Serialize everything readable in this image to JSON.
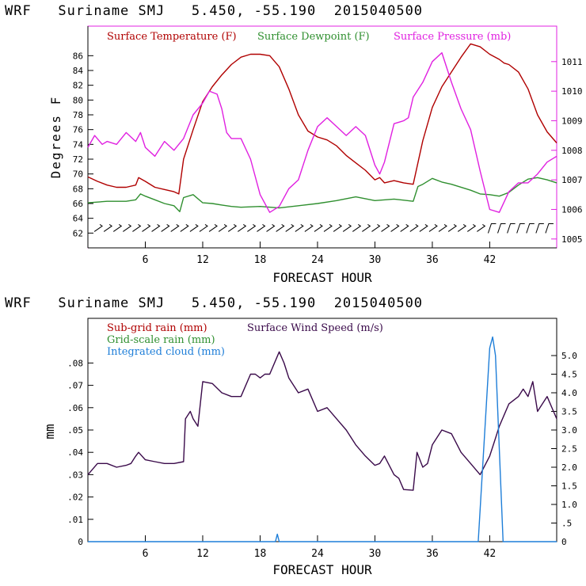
{
  "chart_data": [
    {
      "type": "line",
      "title": "WRF   Suriname SMJ   5.450, -55.190  2015040500",
      "xlabel": "FORECAST HOUR",
      "ylabel": "Degrees F",
      "xlim": [
        0,
        49
      ],
      "ylim": [
        60,
        90
      ],
      "y2lim": [
        1004.7,
        1012.2
      ],
      "xticks": [
        6,
        12,
        18,
        24,
        30,
        36,
        42
      ],
      "yticks": [
        62,
        64,
        66,
        68,
        70,
        72,
        74,
        76,
        78,
        80,
        82,
        84,
        86
      ],
      "y2ticks": [
        1005,
        1006,
        1007,
        1008,
        1009,
        1010,
        1011
      ],
      "legend": [
        "Surface Temperature (F)",
        "Surface Dewpoint (F)",
        "Surface Pressure (mb)"
      ],
      "series": [
        {
          "name": "Surface Temperature (F)",
          "axis": "left",
          "color": "#b00000",
          "x": [
            0,
            1,
            2,
            3,
            4,
            5,
            5.3,
            6,
            7,
            8,
            9,
            9.5,
            10,
            11,
            12,
            13,
            14,
            15,
            16,
            17,
            18,
            19,
            20,
            21,
            22,
            23,
            24,
            25,
            26,
            27,
            28,
            29,
            30,
            30.5,
            31,
            32,
            33,
            34,
            35,
            36,
            37,
            38,
            39,
            40,
            41,
            42,
            43,
            43.5,
            44,
            45,
            46,
            47,
            48,
            49
          ],
          "y": [
            69.6,
            69,
            68.5,
            68.2,
            68.2,
            68.5,
            69.5,
            69,
            68.2,
            67.9,
            67.6,
            67.3,
            72,
            76,
            79.8,
            81.8,
            83.4,
            84.8,
            85.8,
            86.2,
            86.2,
            86,
            84.5,
            81.5,
            78,
            75.8,
            75,
            74.6,
            73.8,
            72.5,
            71.5,
            70.5,
            69.2,
            69.5,
            68.8,
            69.1,
            68.8,
            68.6,
            74.5,
            79,
            81.8,
            83.8,
            85.8,
            87.6,
            87.2,
            86.2,
            85.5,
            85,
            84.8,
            83.8,
            81.5,
            78,
            75.7,
            74.2
          ]
        },
        {
          "name": "Surface Dewpoint (F)",
          "axis": "left",
          "color": "#2f8f2f",
          "x": [
            0,
            2,
            4,
            5,
            5.5,
            6,
            7,
            8,
            9,
            9.6,
            10,
            11,
            12,
            13,
            14,
            15,
            16,
            18,
            20,
            22,
            24,
            26,
            28,
            30,
            32,
            34,
            34.5,
            35,
            36,
            37,
            38,
            40,
            41,
            42,
            43,
            44,
            45,
            46,
            47,
            48,
            49
          ],
          "y": [
            66.1,
            66.3,
            66.3,
            66.5,
            67.3,
            67,
            66.5,
            66,
            65.7,
            64.9,
            66.8,
            67.2,
            66.1,
            66,
            65.8,
            65.6,
            65.5,
            65.6,
            65.4,
            65.7,
            66,
            66.4,
            66.9,
            66.4,
            66.6,
            66.3,
            68.3,
            68.6,
            69.4,
            68.9,
            68.6,
            67.8,
            67.3,
            67.2,
            67,
            67.5,
            68.5,
            69.3,
            69.5,
            69.2,
            68.8
          ]
        },
        {
          "name": "Surface Pressure (mb)",
          "axis": "right",
          "color": "#e020e0",
          "x": [
            0,
            0.7,
            1.5,
            2,
            3,
            4,
            5,
            5.5,
            6,
            7,
            8,
            9,
            10,
            11,
            12,
            12.7,
            13.5,
            14,
            14.5,
            15,
            16,
            17,
            18,
            19,
            20,
            21,
            22,
            23,
            24,
            25,
            26,
            27,
            28,
            29,
            30,
            30.5,
            31,
            32,
            33,
            33.5,
            34,
            35,
            36,
            37,
            38,
            39,
            40,
            41,
            42,
            43,
            44,
            45,
            46,
            47,
            48,
            49
          ],
          "y": [
            1008.1,
            1008.5,
            1008.2,
            1008.3,
            1008.2,
            1008.6,
            1008.3,
            1008.6,
            1008.1,
            1007.8,
            1008.3,
            1008.0,
            1008.4,
            1009.2,
            1009.6,
            1010.0,
            1009.9,
            1009.4,
            1008.6,
            1008.4,
            1008.4,
            1007.7,
            1006.5,
            1005.9,
            1006.1,
            1006.7,
            1007.0,
            1008.0,
            1008.8,
            1009.1,
            1008.8,
            1008.5,
            1008.8,
            1008.5,
            1007.5,
            1007.2,
            1007.6,
            1008.9,
            1009.0,
            1009.1,
            1009.8,
            1010.3,
            1011.0,
            1011.3,
            1010.3,
            1009.4,
            1008.7,
            1007.3,
            1006.0,
            1005.9,
            1006.6,
            1006.9,
            1006.9,
            1007.2,
            1007.6,
            1007.8
          ]
        }
      ],
      "wind_barbs": "row of wind barbs along the bottom of the plot"
    },
    {
      "type": "line",
      "title": "WRF   Suriname SMJ   5.450, -55.190  2015040500",
      "xlabel": "FORECAST HOUR",
      "ylabel": "mm",
      "xlim": [
        0,
        49
      ],
      "ylim": [
        0,
        0.1
      ],
      "y2lim": [
        0,
        6
      ],
      "xticks": [
        6,
        12,
        18,
        24,
        30,
        36,
        42
      ],
      "yticks": [
        0,
        0.01,
        0.02,
        0.03,
        0.04,
        0.05,
        0.06,
        0.07,
        0.08
      ],
      "ytick_labels": [
        "0",
        ".01",
        ".02",
        ".03",
        ".04",
        ".05",
        ".06",
        ".07",
        ".08"
      ],
      "y2ticks": [
        0,
        0.5,
        1.0,
        1.5,
        2.0,
        2.5,
        3.0,
        3.5,
        4.0,
        4.5,
        5.0
      ],
      "y2tick_labels": [
        ".5",
        "1.0",
        "1.5",
        "2.0",
        "2.5",
        "3.0",
        "3.5",
        "4.0",
        "4.5",
        "5.0"
      ],
      "legend": [
        "Sub-grid rain (mm)",
        "Grid-scale rain (mm)",
        "Integrated cloud (mm)",
        "Surface Wind Speed (m/s)"
      ],
      "series": [
        {
          "name": "Surface Wind Speed (m/s)",
          "axis": "right",
          "color": "#3a0a4a",
          "x": [
            0,
            1,
            2,
            3,
            4,
            4.5,
            5,
            5.3,
            6,
            7,
            8,
            9,
            10,
            10.2,
            10.7,
            11,
            11.5,
            12,
            13,
            14,
            15,
            16,
            17,
            17.5,
            18,
            18.5,
            19,
            20,
            20.5,
            21,
            22,
            23,
            24,
            25,
            26,
            27,
            28,
            29,
            30,
            30.5,
            31,
            32,
            32.5,
            33,
            34,
            34.4,
            35,
            35.5,
            36,
            37,
            38,
            39,
            40,
            41,
            42,
            42.5,
            43,
            44,
            45,
            45.5,
            46,
            46.5,
            47,
            48,
            49
          ],
          "y": [
            1.8,
            2.1,
            2.1,
            2.0,
            2.05,
            2.1,
            2.3,
            2.4,
            2.2,
            2.15,
            2.1,
            2.1,
            2.15,
            3.3,
            3.5,
            3.3,
            3.1,
            4.3,
            4.25,
            4.0,
            3.9,
            3.9,
            4.5,
            4.5,
            4.4,
            4.5,
            4.5,
            5.1,
            4.8,
            4.4,
            4.0,
            4.1,
            3.5,
            3.6,
            3.3,
            3.0,
            2.6,
            2.3,
            2.05,
            2.1,
            2.3,
            1.8,
            1.7,
            1.4,
            1.38,
            2.4,
            2.0,
            2.1,
            2.6,
            3.0,
            2.9,
            2.4,
            2.1,
            1.8,
            2.3,
            2.7,
            3.1,
            3.7,
            3.9,
            4.1,
            3.9,
            4.3,
            3.5,
            3.9,
            3.3
          ]
        },
        {
          "name": "Integrated cloud (mm)",
          "axis": "right",
          "color": "#1e7ed8",
          "x": [
            0,
            19.6,
            19.8,
            20,
            40.8,
            42,
            42.3,
            42.6,
            43.4,
            49
          ],
          "y": [
            0,
            0,
            0.2,
            0,
            0,
            5.2,
            5.5,
            5.0,
            0,
            0
          ]
        }
      ]
    }
  ]
}
